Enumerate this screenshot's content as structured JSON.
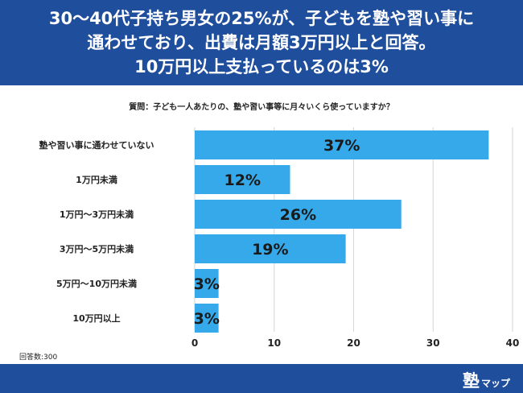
{
  "header": {
    "lines": [
      "30〜40代子持ち男女の25%が、子どもを塾や習い事に",
      "通わせており、出費は月額3万円以上と回答。",
      "10万円以上支払っているのは3%"
    ]
  },
  "question": "質問：子ども一人あたりの、塾や習い事等に月々いくら使っていますか？",
  "response_count": "回答数:300",
  "brand": {
    "mark": "塾",
    "text": "マップ"
  },
  "colors": {
    "header_bg": "#1f4e9c",
    "bar": "#35a9ea",
    "bar_label": "#1a1a1a",
    "grid": "#d6d6d6"
  },
  "chart_data": {
    "type": "bar",
    "orientation": "horizontal",
    "categories": [
      "塾や習い事に通わせていない",
      "1万円未満",
      "1万円〜3万円未満",
      "3万円〜5万円未満",
      "5万円〜10万円未満",
      "10万円以上"
    ],
    "values": [
      37,
      12,
      26,
      19,
      3,
      3
    ],
    "value_labels": [
      "37%",
      "12%",
      "26%",
      "19%",
      "3%",
      "3%"
    ],
    "xlim": [
      0,
      40
    ],
    "xticks": [
      "0",
      "10",
      "20",
      "30",
      "40"
    ],
    "grid": true
  }
}
